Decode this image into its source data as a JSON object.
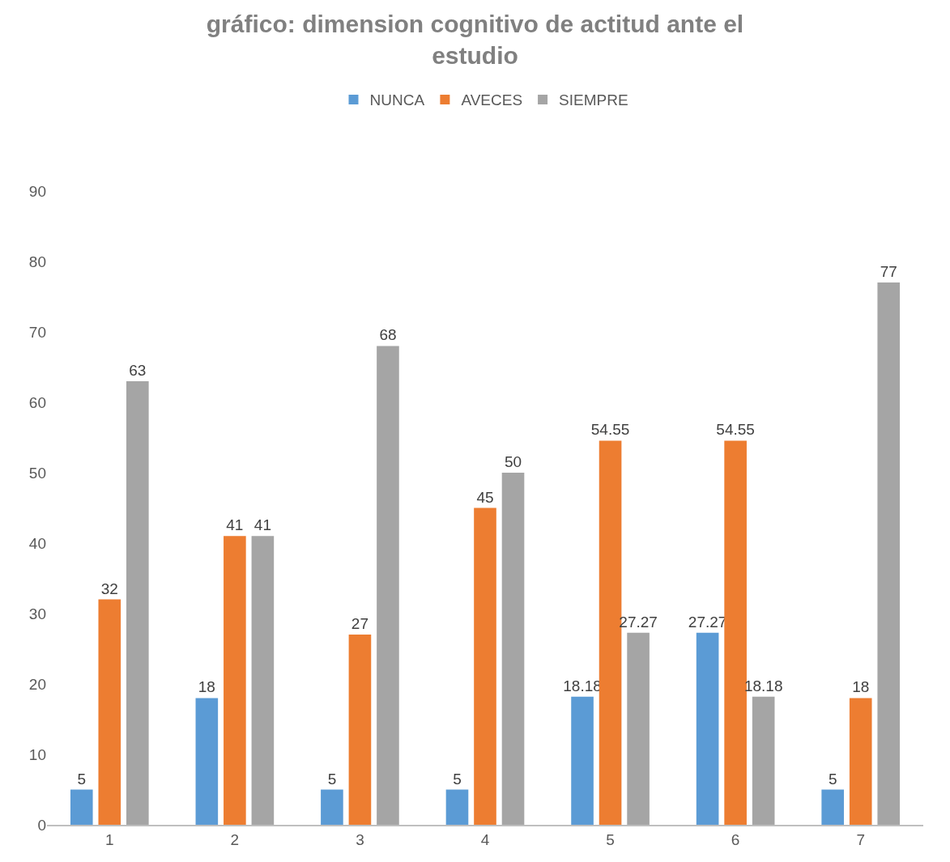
{
  "chart_data": {
    "type": "bar",
    "title": "gráfico: dimension cognitivo de actitud ante el estudio",
    "categories": [
      "1",
      "2",
      "3",
      "4",
      "5",
      "6",
      "7"
    ],
    "series": [
      {
        "name": "NUNCA",
        "color": "#5b9bd5",
        "values": [
          5,
          18,
          5,
          5,
          18.18,
          27.27,
          5
        ]
      },
      {
        "name": "AVECES",
        "color": "#ed7d31",
        "values": [
          32,
          41,
          27,
          45,
          54.55,
          54.55,
          18
        ]
      },
      {
        "name": "SIEMPRE",
        "color": "#a5a5a5",
        "values": [
          63,
          41,
          68,
          50,
          27.27,
          18.18,
          77
        ]
      }
    ],
    "ylim": [
      0,
      90
    ],
    "yticks": [
      0,
      10,
      20,
      30,
      40,
      50,
      60,
      70,
      80,
      90
    ],
    "data_labels": true,
    "legend": "top"
  }
}
